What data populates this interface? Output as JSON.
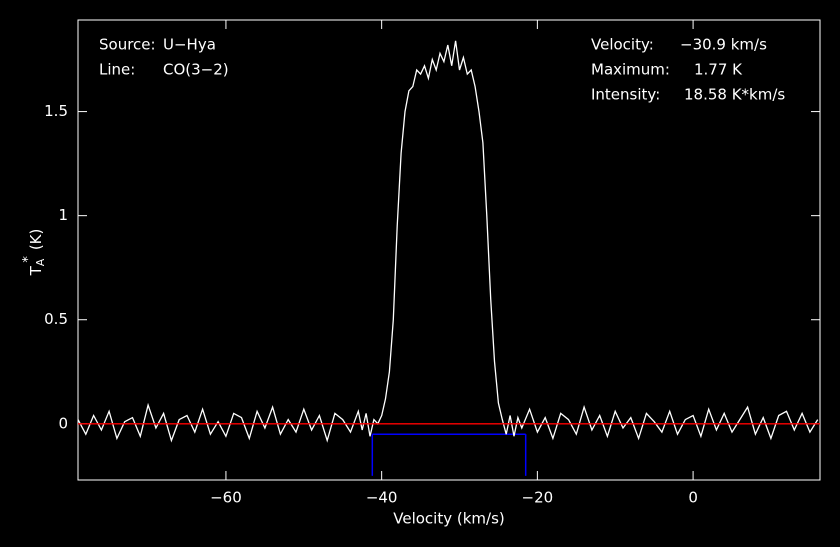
{
  "chart_data": {
    "type": "line",
    "annotations": {
      "source_label": "Source:",
      "source": "U−Hya",
      "line_label": "Line:",
      "line": "CO(3−2)",
      "velocity_label": "Velocity:",
      "velocity": "−30.9 km/s",
      "maximum_label": "Maximum:",
      "maximum": "1.77 K",
      "intensity_label": "Intensity:",
      "intensity": "18.58 K*km/s"
    },
    "xlabel": "Velocity (km/s)",
    "ylabel": {
      "main": "T",
      "sub": "A",
      "sup": "*",
      "unit": "(K)"
    },
    "xlim": [
      -79,
      16.3
    ],
    "ylim": [
      -0.27,
      1.94
    ],
    "xticks": [
      {
        "value": -60,
        "label": "−60"
      },
      {
        "value": -40,
        "label": "−40"
      },
      {
        "value": -20,
        "label": "−20"
      },
      0
    ],
    "yticks": [
      0,
      0.5,
      1,
      1.5
    ],
    "baseline": 0,
    "baseline_color": "#ff0000",
    "window": {
      "xlim": [
        -41.2,
        -21.5
      ],
      "y": -0.05,
      "bottom": -0.25,
      "color": "#0000ff"
    },
    "series": [
      {
        "color": "#ffffff",
        "x": [
          -79,
          -78,
          -77,
          -76,
          -75,
          -74,
          -73,
          -72,
          -71,
          -70,
          -69,
          -68,
          -67,
          -66,
          -65,
          -64,
          -63,
          -62,
          -61,
          -60,
          -59,
          -58,
          -57,
          -56,
          -55,
          -54,
          -53,
          -52,
          -51,
          -50,
          -49,
          -48,
          -47,
          -46,
          -45,
          -44,
          -43,
          -42.5,
          -42,
          -41.5,
          -41,
          -40.5,
          -40,
          -39.5,
          -39,
          -38.5,
          -38,
          -37.5,
          -37,
          -36.5,
          -36,
          -35.5,
          -35,
          -34.5,
          -34,
          -33.5,
          -33,
          -32.5,
          -32,
          -31.5,
          -31,
          -30.5,
          -30,
          -29.5,
          -29,
          -28.5,
          -28,
          -27.5,
          -27,
          -26.5,
          -26,
          -25.5,
          -25,
          -24.5,
          -24,
          -23.5,
          -23,
          -22.5,
          -22,
          -21,
          -20,
          -19,
          -18,
          -17,
          -16,
          -15,
          -14,
          -13,
          -12,
          -11,
          -10,
          -9,
          -8,
          -7,
          -6,
          -5,
          -4,
          -3,
          -2,
          -1,
          0,
          1,
          2,
          3,
          4,
          5,
          6,
          7,
          8,
          9,
          10,
          11,
          12,
          13,
          14,
          15,
          16
        ],
        "values": [
          0.02,
          -0.05,
          0.04,
          -0.03,
          0.06,
          -0.07,
          0.01,
          0.03,
          -0.06,
          0.09,
          -0.02,
          0.05,
          -0.08,
          0.02,
          0.04,
          -0.04,
          0.07,
          -0.05,
          0.01,
          -0.06,
          0.05,
          0.03,
          -0.07,
          0.06,
          -0.02,
          0.08,
          -0.05,
          0.02,
          -0.04,
          0.07,
          -0.03,
          0.04,
          -0.08,
          0.05,
          0.02,
          -0.04,
          0.06,
          -0.03,
          0.05,
          -0.06,
          0.02,
          0.0,
          0.04,
          0.12,
          0.25,
          0.5,
          0.95,
          1.3,
          1.5,
          1.6,
          1.62,
          1.7,
          1.68,
          1.72,
          1.66,
          1.75,
          1.7,
          1.78,
          1.74,
          1.82,
          1.72,
          1.84,
          1.7,
          1.76,
          1.68,
          1.7,
          1.62,
          1.5,
          1.35,
          1.0,
          0.6,
          0.3,
          0.1,
          0.02,
          -0.05,
          0.04,
          -0.06,
          0.03,
          -0.02,
          0.07,
          -0.04,
          0.03,
          -0.07,
          0.05,
          0.02,
          -0.05,
          0.08,
          -0.03,
          0.04,
          -0.06,
          0.06,
          -0.02,
          0.03,
          -0.07,
          0.05,
          0.01,
          -0.04,
          0.06,
          -0.05,
          0.02,
          0.04,
          -0.06,
          0.07,
          -0.03,
          0.05,
          -0.04,
          0.02,
          0.08,
          -0.05,
          0.03,
          -0.07,
          0.04,
          0.06,
          -0.03,
          0.05,
          -0.04,
          0.02
        ]
      }
    ]
  }
}
